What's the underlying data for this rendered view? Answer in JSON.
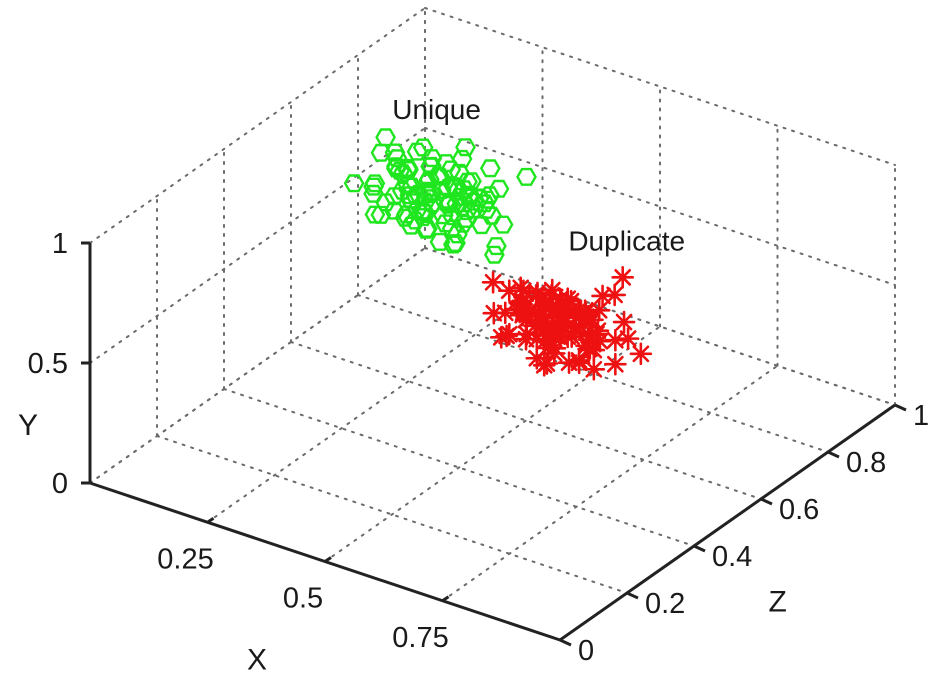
{
  "chart_data": {
    "type": "scatter",
    "projection": "3d",
    "grid": true,
    "axes": {
      "x": {
        "label": "X",
        "range": [
          0,
          1
        ],
        "ticks": [
          "0.25",
          "0.5",
          "0.75"
        ]
      },
      "y": {
        "label": "Y",
        "range": [
          0,
          1
        ],
        "ticks": [
          "0",
          "0.5",
          "1"
        ]
      },
      "z": {
        "label": "Z",
        "range": [
          0,
          1
        ],
        "ticks": [
          "0",
          "0.2",
          "0.4",
          "0.6",
          "0.8",
          "1"
        ]
      }
    },
    "series": [
      {
        "name": "Unique",
        "marker": "hexagon",
        "color": "#1fe61f",
        "points": [
          [
            0.2,
            0.78,
            0.67
          ],
          [
            0.21,
            0.62,
            0.65
          ],
          [
            0.21,
            0.85,
            0.7
          ],
          [
            0.33,
            0.72,
            0.7
          ],
          [
            0.38,
            0.77,
            0.77
          ],
          [
            0.24,
            0.81,
            0.68
          ],
          [
            0.27,
            0.73,
            0.69
          ],
          [
            0.31,
            0.66,
            0.69
          ],
          [
            0.35,
            0.74,
            0.73
          ],
          [
            0.2,
            0.65,
            0.7
          ],
          [
            0.15,
            0.72,
            0.64
          ],
          [
            0.19,
            0.81,
            0.71
          ],
          [
            0.17,
            0.87,
            0.63
          ],
          [
            0.25,
            0.65,
            0.62
          ],
          [
            0.27,
            0.81,
            0.66
          ],
          [
            0.34,
            0.82,
            0.64
          ],
          [
            0.31,
            0.77,
            0.76
          ],
          [
            0.12,
            0.72,
            0.62
          ],
          [
            0.15,
            0.59,
            0.64
          ],
          [
            0.25,
            0.55,
            0.71
          ],
          [
            0.25,
            0.64,
            0.71
          ],
          [
            0.17,
            0.59,
            0.67
          ],
          [
            0.14,
            0.74,
            0.72
          ],
          [
            0.24,
            0.67,
            0.64
          ],
          [
            0.31,
            0.72,
            0.66
          ],
          [
            0.29,
            0.73,
            0.69
          ],
          [
            0.27,
            0.69,
            0.76
          ],
          [
            0.16,
            0.72,
            0.7
          ],
          [
            0.21,
            0.66,
            0.71
          ],
          [
            0.37,
            0.69,
            0.68
          ],
          [
            0.29,
            0.76,
            0.68
          ],
          [
            0.23,
            0.71,
            0.65
          ],
          [
            0.16,
            0.74,
            0.69
          ],
          [
            0.29,
            0.84,
            0.67
          ],
          [
            0.19,
            0.6,
            0.75
          ],
          [
            0.22,
            0.83,
            0.64
          ],
          [
            0.17,
            0.72,
            0.71
          ],
          [
            0.15,
            0.79,
            0.7
          ],
          [
            0.38,
            0.64,
            0.7
          ],
          [
            0.33,
            0.67,
            0.66
          ],
          [
            0.31,
            0.61,
            0.61
          ],
          [
            0.28,
            0.66,
            0.74
          ],
          [
            0.29,
            0.55,
            0.69
          ],
          [
            0.3,
            0.61,
            0.66
          ],
          [
            0.2,
            0.7,
            0.68
          ],
          [
            0.22,
            0.77,
            0.71
          ],
          [
            0.19,
            0.63,
            0.69
          ],
          [
            0.17,
            0.65,
            0.67
          ],
          [
            0.2,
            0.76,
            0.74
          ],
          [
            0.21,
            0.85,
            0.62
          ],
          [
            0.26,
            0.78,
            0.68
          ],
          [
            0.33,
            0.7,
            0.73
          ],
          [
            0.35,
            0.76,
            0.67
          ],
          [
            0.2,
            0.59,
            0.66
          ],
          [
            0.28,
            0.78,
            0.71
          ],
          [
            0.38,
            0.75,
            0.65
          ],
          [
            0.22,
            0.58,
            0.65
          ],
          [
            0.25,
            0.77,
            0.76
          ],
          [
            0.31,
            0.56,
            0.65
          ],
          [
            0.21,
            0.69,
            0.66
          ],
          [
            0.3,
            0.67,
            0.69
          ],
          [
            0.17,
            0.66,
            0.71
          ],
          [
            0.32,
            0.66,
            0.73
          ],
          [
            0.14,
            0.69,
            0.65
          ],
          [
            0.27,
            0.66,
            0.69
          ],
          [
            0.21,
            0.56,
            0.7
          ],
          [
            0.3,
            0.91,
            0.7
          ],
          [
            0.24,
            0.64,
            0.66
          ],
          [
            0.23,
            0.74,
            0.69
          ],
          [
            0.23,
            0.63,
            0.7
          ],
          [
            0.13,
            0.84,
            0.7
          ],
          [
            0.29,
            0.74,
            0.72
          ],
          [
            0.3,
            0.69,
            0.71
          ],
          [
            0.26,
            0.64,
            0.71
          ],
          [
            0.36,
            0.75,
            0.68
          ],
          [
            0.26,
            0.61,
            0.69
          ],
          [
            0.39,
            0.56,
            0.66
          ],
          [
            0.28,
            0.68,
            0.71
          ],
          [
            0.31,
            0.68,
            0.71
          ],
          [
            0.25,
            0.7,
            0.65
          ],
          [
            0.3,
            0.54,
            0.67
          ],
          [
            0.28,
            0.73,
            0.7
          ],
          [
            0.22,
            0.71,
            0.7
          ],
          [
            0.24,
            0.56,
            0.67
          ],
          [
            0.18,
            0.67,
            0.68
          ],
          [
            0.33,
            0.66,
            0.65
          ],
          [
            0.16,
            0.7,
            0.71
          ],
          [
            0.25,
            0.72,
            0.66
          ],
          [
            0.38,
            0.57,
            0.68
          ],
          [
            0.37,
            0.68,
            0.65
          ],
          [
            0.18,
            0.67,
            0.63
          ],
          [
            0.2,
            0.55,
            0.72
          ],
          [
            0.23,
            0.63,
            0.67
          ],
          [
            0.36,
            0.75,
            0.64
          ],
          [
            0.22,
            0.64,
            0.74
          ],
          [
            0.14,
            0.66,
            0.65
          ],
          [
            0.23,
            0.54,
            0.68
          ],
          [
            0.12,
            0.51,
            0.7
          ],
          [
            0.28,
            0.86,
            0.67
          ],
          [
            0.33,
            0.72,
            0.62
          ]
        ]
      },
      {
        "name": "Duplicate",
        "marker": "asterisk",
        "color": "#ee1111",
        "points": [
          [
            0.62,
            0.53,
            0.59
          ],
          [
            0.54,
            0.5,
            0.47
          ],
          [
            0.67,
            0.65,
            0.52
          ],
          [
            0.58,
            0.52,
            0.54
          ],
          [
            0.66,
            0.61,
            0.54
          ],
          [
            0.58,
            0.47,
            0.52
          ],
          [
            0.67,
            0.59,
            0.58
          ],
          [
            0.63,
            0.52,
            0.49
          ],
          [
            0.58,
            0.39,
            0.52
          ],
          [
            0.62,
            0.71,
            0.51
          ],
          [
            0.6,
            0.48,
            0.52
          ],
          [
            0.67,
            0.44,
            0.52
          ],
          [
            0.62,
            0.56,
            0.53
          ],
          [
            0.5,
            0.59,
            0.55
          ],
          [
            0.71,
            0.69,
            0.57
          ],
          [
            0.63,
            0.67,
            0.52
          ],
          [
            0.55,
            0.59,
            0.56
          ],
          [
            0.69,
            0.54,
            0.52
          ],
          [
            0.62,
            0.54,
            0.55
          ],
          [
            0.7,
            0.54,
            0.5
          ],
          [
            0.61,
            0.4,
            0.5
          ],
          [
            0.58,
            0.71,
            0.48
          ],
          [
            0.59,
            0.42,
            0.54
          ],
          [
            0.55,
            0.44,
            0.53
          ],
          [
            0.61,
            0.57,
            0.54
          ],
          [
            0.53,
            0.47,
            0.5
          ],
          [
            0.65,
            0.56,
            0.57
          ],
          [
            0.57,
            0.51,
            0.56
          ],
          [
            0.55,
            0.51,
            0.48
          ],
          [
            0.7,
            0.57,
            0.51
          ],
          [
            0.67,
            0.64,
            0.59
          ],
          [
            0.54,
            0.54,
            0.54
          ],
          [
            0.74,
            0.46,
            0.53
          ],
          [
            0.69,
            0.5,
            0.52
          ],
          [
            0.74,
            0.56,
            0.53
          ],
          [
            0.68,
            0.38,
            0.55
          ],
          [
            0.6,
            0.62,
            0.52
          ],
          [
            0.59,
            0.63,
            0.55
          ],
          [
            0.55,
            0.61,
            0.52
          ],
          [
            0.67,
            0.46,
            0.49
          ],
          [
            0.72,
            0.76,
            0.58
          ],
          [
            0.76,
            0.57,
            0.54
          ],
          [
            0.54,
            0.58,
            0.53
          ],
          [
            0.64,
            0.53,
            0.55
          ],
          [
            0.66,
            0.71,
            0.5
          ],
          [
            0.64,
            0.5,
            0.49
          ],
          [
            0.7,
            0.52,
            0.51
          ],
          [
            0.59,
            0.47,
            0.56
          ],
          [
            0.6,
            0.53,
            0.52
          ],
          [
            0.66,
            0.55,
            0.55
          ],
          [
            0.64,
            0.5,
            0.54
          ],
          [
            0.66,
            0.69,
            0.51
          ],
          [
            0.67,
            0.57,
            0.56
          ],
          [
            0.59,
            0.58,
            0.51
          ],
          [
            0.55,
            0.52,
            0.53
          ],
          [
            0.73,
            0.59,
            0.57
          ],
          [
            0.6,
            0.5,
            0.52
          ],
          [
            0.58,
            0.56,
            0.53
          ],
          [
            0.55,
            0.55,
            0.52
          ],
          [
            0.56,
            0.69,
            0.5
          ],
          [
            0.7,
            0.52,
            0.54
          ],
          [
            0.63,
            0.61,
            0.53
          ],
          [
            0.6,
            0.58,
            0.54
          ],
          [
            0.56,
            0.62,
            0.55
          ],
          [
            0.57,
            0.59,
            0.51
          ],
          [
            0.61,
            0.42,
            0.53
          ],
          [
            0.61,
            0.52,
            0.56
          ],
          [
            0.51,
            0.53,
            0.57
          ],
          [
            0.67,
            0.57,
            0.51
          ],
          [
            0.61,
            0.54,
            0.56
          ],
          [
            0.59,
            0.6,
            0.53
          ],
          [
            0.67,
            0.62,
            0.54
          ],
          [
            0.71,
            0.59,
            0.52
          ],
          [
            0.62,
            0.53,
            0.51
          ],
          [
            0.58,
            0.6,
            0.49
          ],
          [
            0.52,
            0.55,
            0.51
          ],
          [
            0.64,
            0.55,
            0.51
          ],
          [
            0.68,
            0.61,
            0.49
          ],
          [
            0.51,
            0.51,
            0.56
          ],
          [
            0.6,
            0.59,
            0.55
          ],
          [
            0.61,
            0.51,
            0.53
          ],
          [
            0.68,
            0.46,
            0.55
          ],
          [
            0.6,
            0.63,
            0.52
          ],
          [
            0.61,
            0.45,
            0.57
          ],
          [
            0.62,
            0.51,
            0.52
          ],
          [
            0.6,
            0.57,
            0.56
          ],
          [
            0.69,
            0.67,
            0.51
          ],
          [
            0.67,
            0.43,
            0.52
          ],
          [
            0.53,
            0.55,
            0.53
          ],
          [
            0.7,
            0.56,
            0.53
          ],
          [
            0.65,
            0.67,
            0.51
          ],
          [
            0.58,
            0.52,
            0.49
          ],
          [
            0.63,
            0.51,
            0.52
          ],
          [
            0.43,
            0.53,
            0.6
          ],
          [
            0.46,
            0.46,
            0.56
          ],
          [
            0.63,
            0.44,
            0.48
          ],
          [
            0.78,
            0.51,
            0.55
          ],
          [
            0.54,
            0.45,
            0.57
          ],
          [
            0.66,
            0.6,
            0.54
          ],
          [
            0.57,
            0.53,
            0.55
          ]
        ]
      }
    ],
    "annotations": [
      {
        "text": "Unique",
        "at": [
          0.21,
          0.93,
          0.74
        ]
      },
      {
        "text": "Duplicate",
        "at": [
          0.7,
          0.82,
          0.62
        ]
      }
    ]
  }
}
